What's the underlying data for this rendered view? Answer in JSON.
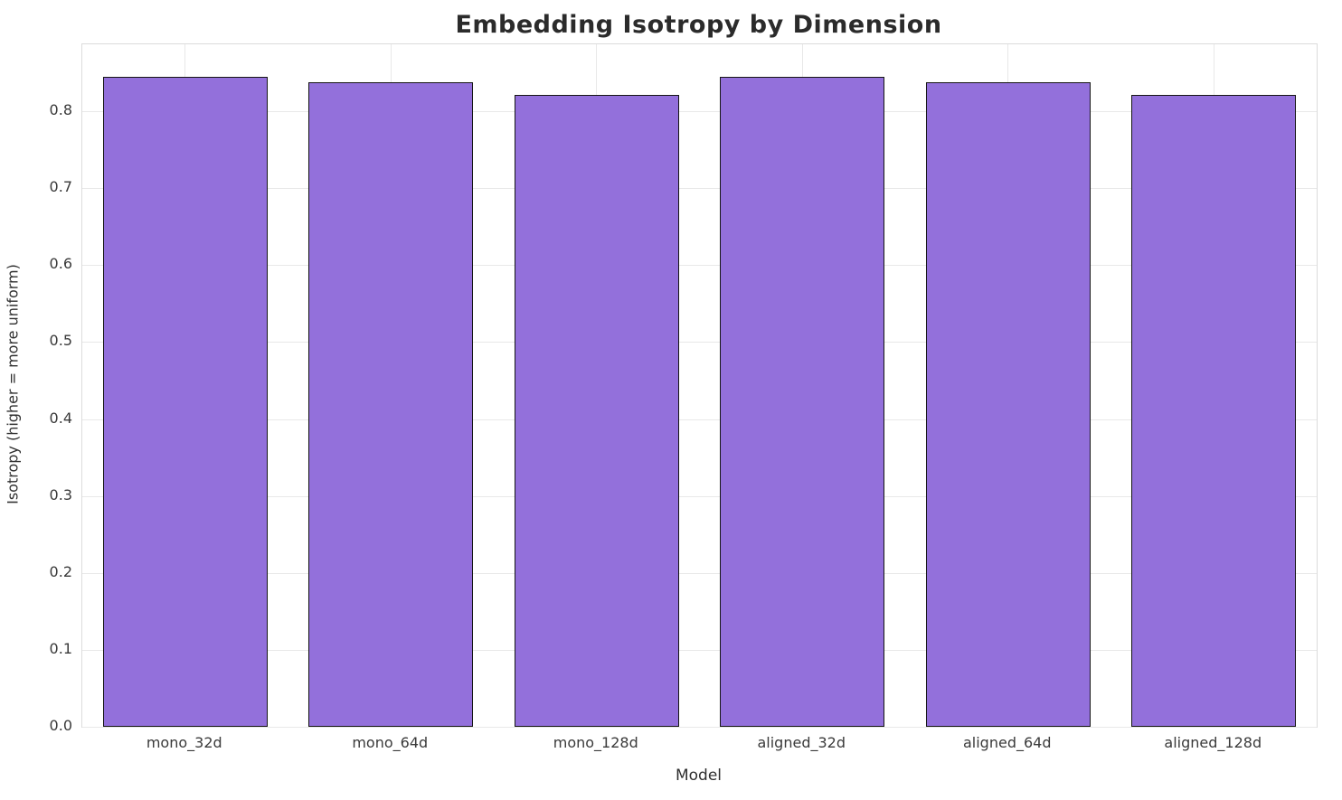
{
  "chart_data": {
    "type": "bar",
    "title": "Embedding Isotropy by Dimension",
    "xlabel": "Model",
    "ylabel": "Isotropy (higher = more uniform)",
    "categories": [
      "mono_32d",
      "mono_64d",
      "mono_128d",
      "aligned_32d",
      "aligned_64d",
      "aligned_128d"
    ],
    "values": [
      0.845,
      0.838,
      0.821,
      0.845,
      0.838,
      0.821
    ],
    "ylim": [
      0,
      0.887
    ],
    "yticks": [
      0.0,
      0.1,
      0.2,
      0.3,
      0.4,
      0.5,
      0.6,
      0.7,
      0.8
    ],
    "grid": true,
    "legend": "none",
    "bar_color": "#9370DB",
    "bar_edge_color": "#151515",
    "grid_color": "#e8e8e8",
    "background_color": "#ffffff"
  }
}
